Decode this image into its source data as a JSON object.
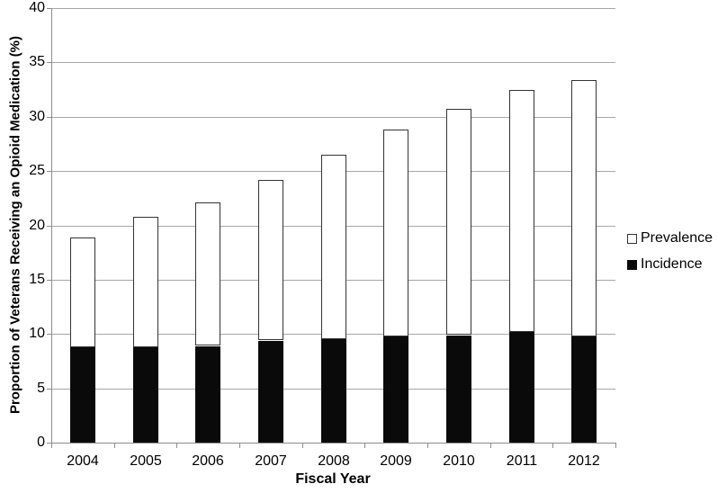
{
  "chart_data": {
    "type": "bar",
    "stacked": true,
    "title": "",
    "xlabel": "Fiscal Year",
    "ylabel": "Proportion of Veterans Receiving an Opioid Medication (%)",
    "categories": [
      "2004",
      "2005",
      "2006",
      "2007",
      "2008",
      "2009",
      "2010",
      "2011",
      "2012"
    ],
    "series": [
      {
        "name": "Prevalence",
        "role": "bar-total",
        "values": [
          18.9,
          20.8,
          22.1,
          24.2,
          26.5,
          28.8,
          30.7,
          32.5,
          33.4
        ],
        "fill": "#ffffff",
        "border": "#333333"
      },
      {
        "name": "Incidence",
        "role": "bar-base",
        "values": [
          8.8,
          8.8,
          8.9,
          9.4,
          9.5,
          9.8,
          9.9,
          10.2,
          9.8
        ],
        "fill": "#0a0a0a",
        "border": "#0a0a0a"
      }
    ],
    "ylim": [
      0,
      40
    ],
    "yticks": [
      0,
      5,
      10,
      15,
      20,
      25,
      30,
      35,
      40
    ],
    "grid": true,
    "legend_position": "right"
  },
  "colors": {
    "background": "#ffffff",
    "gridline": "#a6a6a6",
    "axis": "#8c8c8c",
    "text": "#000000"
  }
}
